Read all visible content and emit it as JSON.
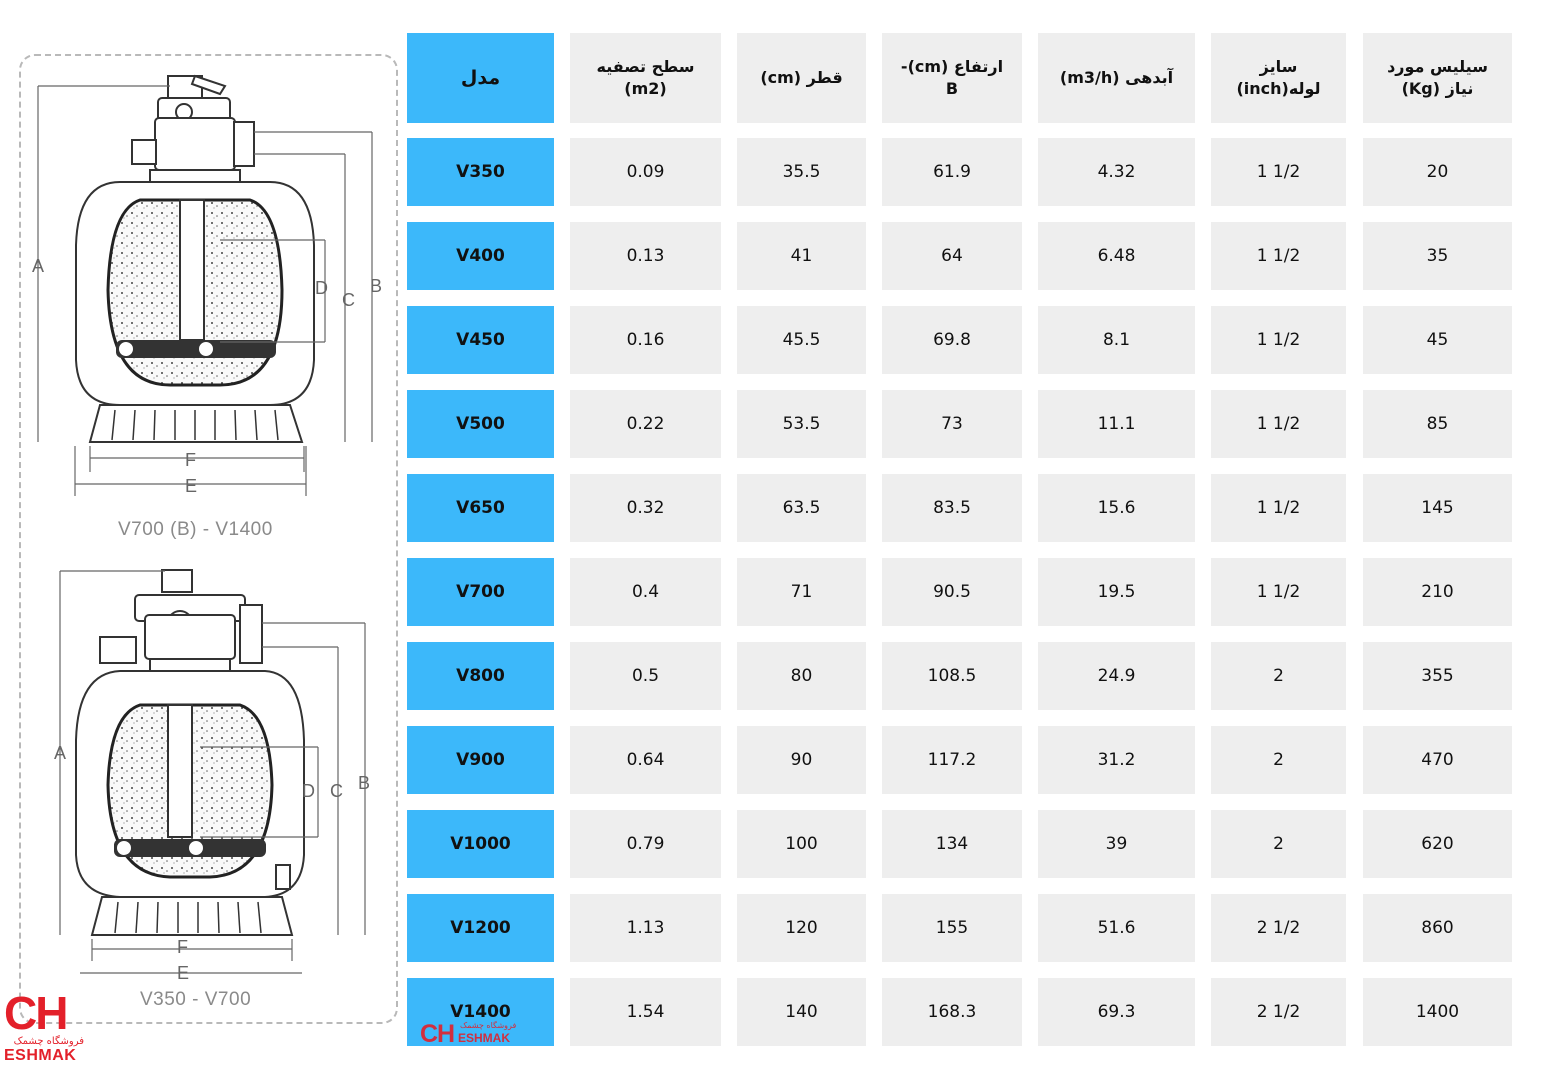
{
  "diagram": {
    "caption_top": "V700 (B) - V1400",
    "caption_bottom": "V350 - V700",
    "labels": {
      "a": "A",
      "b": "B",
      "c": "C",
      "d": "D",
      "e": "E",
      "f": "F"
    }
  },
  "table": {
    "headers": {
      "model": "مدل",
      "filter_area_line1": "سطح تصفیه",
      "filter_area_line2": "(m2)",
      "diameter": "قطر (cm)",
      "height_line1": "ارتفاع (cm)-",
      "height_line2": "B",
      "flow": "آبدهی (m3/h)",
      "pipe_line1": "سایز",
      "pipe_line2": "لوله(inch)",
      "silica_line1": "سیلیس مورد",
      "silica_line2": "نیاز (Kg)"
    },
    "rows": [
      {
        "model": "V350",
        "area": "0.09",
        "diameter": "35.5",
        "height": "61.9",
        "flow": "4.32",
        "pipe": "1 1/2",
        "silica": "20"
      },
      {
        "model": "V400",
        "area": "0.13",
        "diameter": "41",
        "height": "64",
        "flow": "6.48",
        "pipe": "1 1/2",
        "silica": "35"
      },
      {
        "model": "V450",
        "area": "0.16",
        "diameter": "45.5",
        "height": "69.8",
        "flow": "8.1",
        "pipe": "1 1/2",
        "silica": "45"
      },
      {
        "model": "V500",
        "area": "0.22",
        "diameter": "53.5",
        "height": "73",
        "flow": "11.1",
        "pipe": "1 1/2",
        "silica": "85"
      },
      {
        "model": "V650",
        "area": "0.32",
        "diameter": "63.5",
        "height": "83.5",
        "flow": "15.6",
        "pipe": "1 1/2",
        "silica": "145"
      },
      {
        "model": "V700",
        "area": "0.4",
        "diameter": "71",
        "height": "90.5",
        "flow": "19.5",
        "pipe": "1 1/2",
        "silica": "210"
      },
      {
        "model": "V800",
        "area": "0.5",
        "diameter": "80",
        "height": "108.5",
        "flow": "24.9",
        "pipe": "2",
        "silica": "355"
      },
      {
        "model": "V900",
        "area": "0.64",
        "diameter": "90",
        "height": "117.2",
        "flow": "31.2",
        "pipe": "2",
        "silica": "470"
      },
      {
        "model": "V1000",
        "area": "0.79",
        "diameter": "100",
        "height": "134",
        "flow": "39",
        "pipe": "2",
        "silica": "620"
      },
      {
        "model": "V1200",
        "area": "1.13",
        "diameter": "120",
        "height": "155",
        "flow": "51.6",
        "pipe": "2 1/2",
        "silica": "860"
      },
      {
        "model": "V1400",
        "area": "1.54",
        "diameter": "140",
        "height": "168.3",
        "flow": "69.3",
        "pipe": "2 1/2",
        "silica": "1400"
      }
    ]
  },
  "brand": {
    "logo_mark": "CH",
    "logo_persian": "فروشگاه چشمک",
    "logo_latin": "ESHMAK",
    "accent_color": "#3cb8fa",
    "brand_color": "#e3202a"
  }
}
